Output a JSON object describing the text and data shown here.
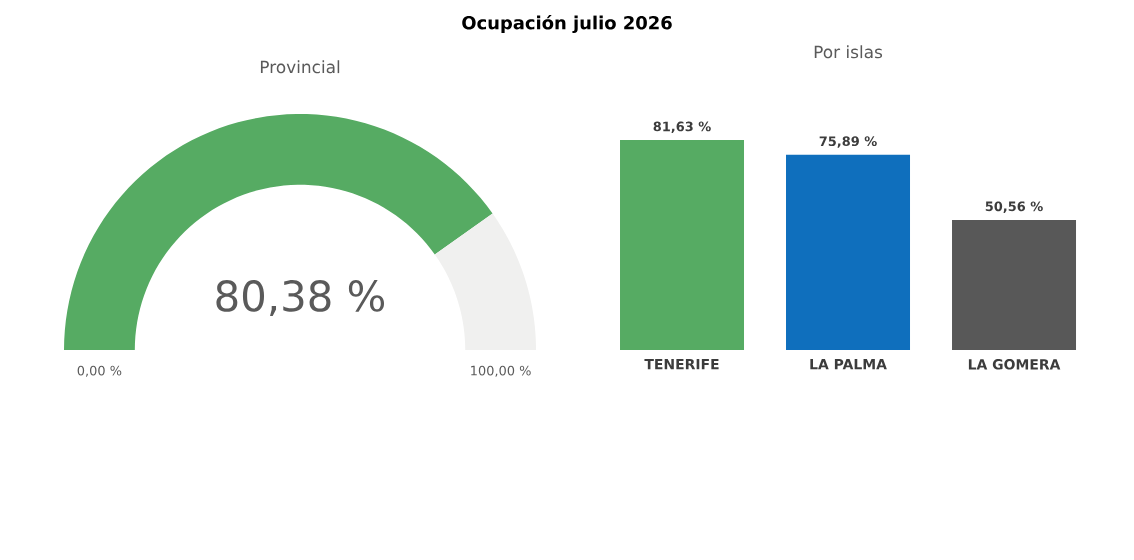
{
  "chart_data": [
    {
      "type": "donut",
      "title": "Ocupación julio 2026",
      "subtitle": "Provincial",
      "categories": [
        null,
        null
      ],
      "values": [
        80.38,
        19.62
      ],
      "colors": [
        "#56ab63",
        "#f0f0ef"
      ],
      "value_labels": [
        "80,38 %",
        null
      ],
      "annotations": [
        "0,00 %",
        "100,00 %"
      ]
    },
    {
      "type": "bar",
      "title": "Por islas",
      "categories": [
        "TENERIFE",
        "LA PALMA",
        "LA GOMERA"
      ],
      "values": [
        81.63,
        75.89,
        50.56
      ],
      "colors": [
        "#56ab63",
        "#0f6fbd",
        "#585858"
      ],
      "value_labels": [
        "81,63 %",
        "75,89 %",
        "50,56 %"
      ]
    }
  ]
}
